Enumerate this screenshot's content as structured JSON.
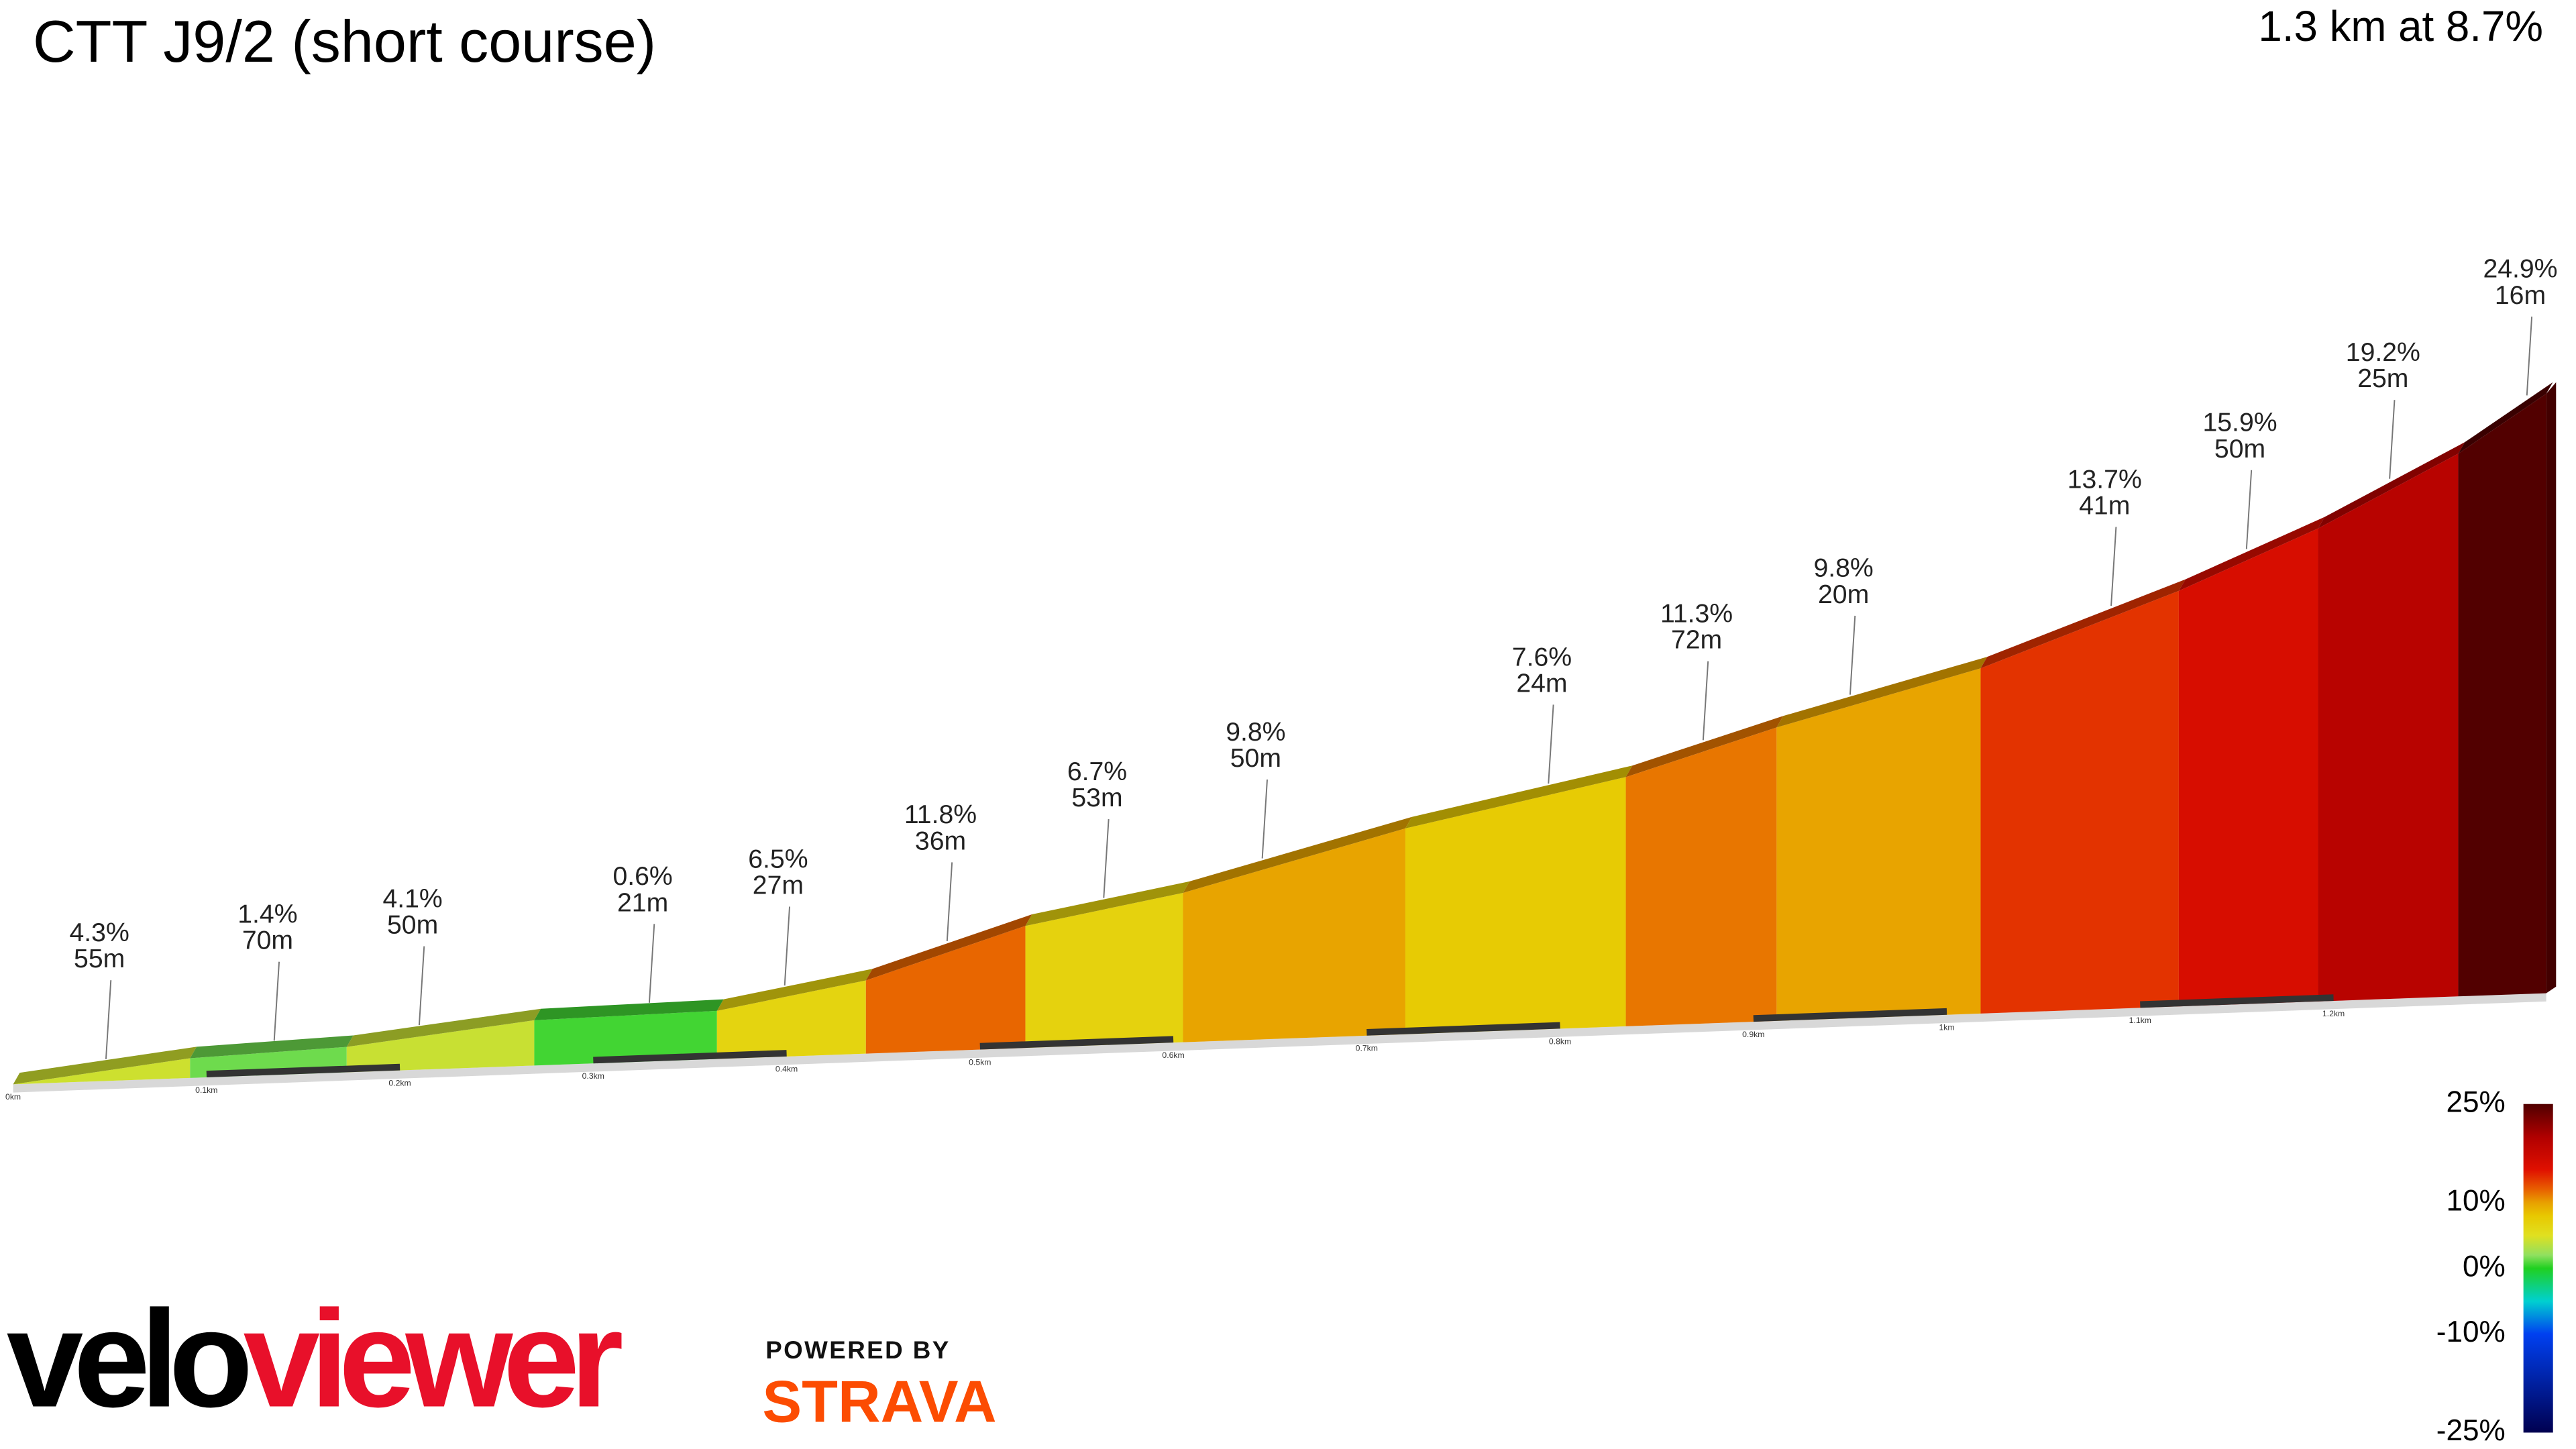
{
  "chart_data": {
    "type": "profile",
    "title": "CTT J9/2 (short course)",
    "subtitle": "1.3 km at 8.7%",
    "distance": [
      0.048,
      0.135,
      0.21,
      0.329,
      0.399,
      0.483,
      0.564,
      0.646,
      0.794,
      0.874,
      0.95,
      1.085,
      1.155,
      1.229,
      1.3
    ],
    "grades": [
      4.3,
      1.4,
      4.1,
      0.6,
      6.5,
      11.8,
      6.7,
      9.8,
      7.6,
      11.3,
      9.8,
      13.7,
      15.9,
      19.2,
      24.9
    ],
    "grade_labels": [
      "4.3%",
      "1.4%",
      "4.1%",
      "0.6%",
      "6.5%",
      "11.8%",
      "6.7%",
      "9.8%",
      "7.6%",
      "11.3%",
      "9.8%",
      "13.7%",
      "15.9%",
      "19.2%",
      "24.9%"
    ],
    "lengths": [
      55,
      70,
      50,
      21,
      27,
      36,
      53,
      50,
      24,
      72,
      20,
      41,
      50,
      25,
      16
    ],
    "length_labels": [
      "55m",
      "70m",
      "50m",
      "21m",
      "27m",
      "36m",
      "53m",
      "50m",
      "24m",
      "72m",
      "20m",
      "41m",
      "50m",
      "25m",
      "16m"
    ],
    "xlim": [
      0,
      1.31
    ],
    "xticks": [
      {
        "value": 0,
        "label": "0km"
      },
      {
        "value": 0.1,
        "label": "0.1km"
      },
      {
        "value": 0.2,
        "label": "0.2km"
      },
      {
        "value": 0.3,
        "label": "0.3km"
      },
      {
        "value": 0.4,
        "label": "0.4km"
      },
      {
        "value": 0.5,
        "label": "0.5km"
      },
      {
        "value": 0.6,
        "label": "0.6km"
      },
      {
        "value": 0.7,
        "label": "0.7km"
      },
      {
        "value": 0.8,
        "label": "0.8km"
      },
      {
        "value": 0.9,
        "label": "0.9km"
      },
      {
        "value": 1,
        "label": "1km"
      },
      {
        "value": 1.1,
        "label": "1.1km"
      },
      {
        "value": 1.2,
        "label": "1.2km"
      }
    ],
    "legend_lim": [
      -25,
      25
    ],
    "legend_ticks": [
      {
        "value": 25,
        "label": "25%"
      },
      {
        "value": 10,
        "label": "10%"
      },
      {
        "value": 0,
        "label": "0%"
      },
      {
        "value": -10,
        "label": "-10%"
      },
      {
        "value": -25,
        "label": "-25%"
      }
    ],
    "color_stops": [
      [
        -25,
        "#000050"
      ],
      [
        -10,
        "#0040f0"
      ],
      [
        -5,
        "#00d0d0"
      ],
      [
        0,
        "#20d020"
      ],
      [
        2,
        "#90e060"
      ],
      [
        5,
        "#e0e020"
      ],
      [
        8,
        "#e8c800"
      ],
      [
        10,
        "#e8a000"
      ],
      [
        12,
        "#e86000"
      ],
      [
        15,
        "#e01000"
      ],
      [
        20,
        "#b00000"
      ],
      [
        25,
        "#500000"
      ]
    ]
  },
  "branding": {
    "logo_left": "velo",
    "logo_right": "viewer",
    "powered": "POWERED BY",
    "strava": "STRAVA"
  }
}
